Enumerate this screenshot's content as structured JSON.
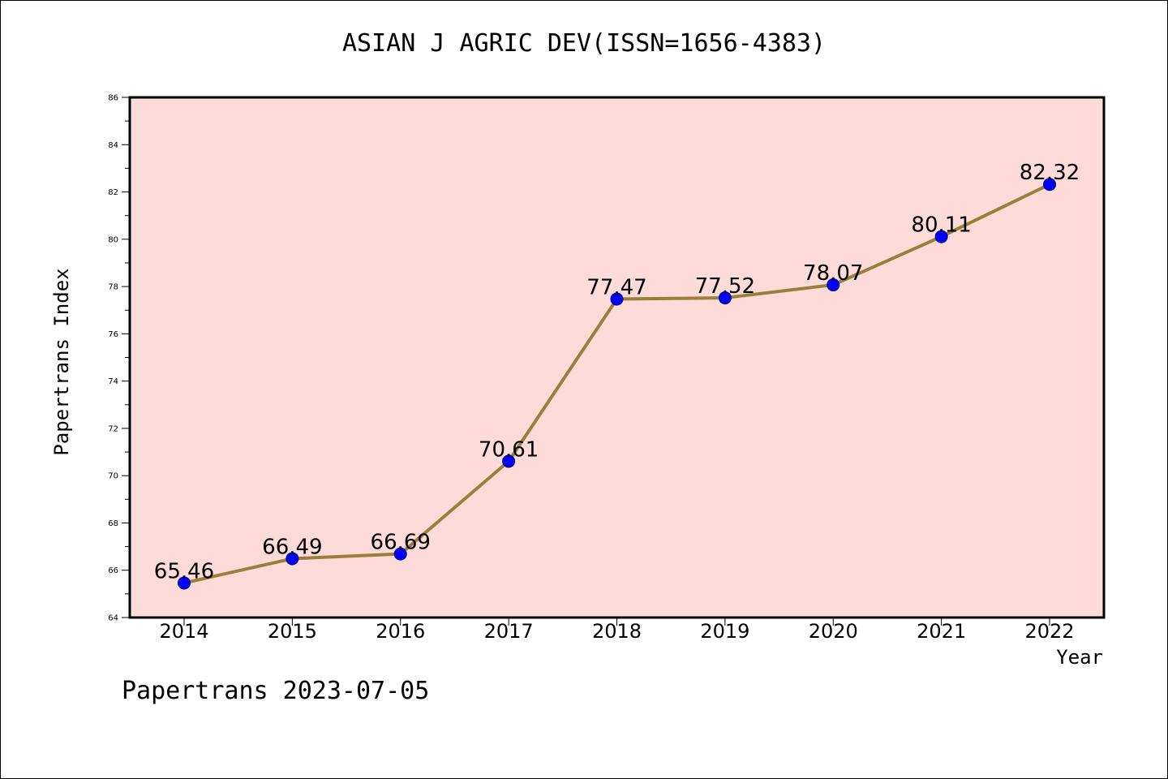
{
  "chart_data": {
    "type": "line",
    "title": "ASIAN J AGRIC DEV(ISSN=1656-4383)",
    "xlabel": "Year",
    "ylabel": "Papertrans Index",
    "categories": [
      "2014",
      "2015",
      "2016",
      "2017",
      "2018",
      "2019",
      "2020",
      "2021",
      "2022"
    ],
    "series": [
      {
        "values": [
          65.46,
          66.49,
          66.69,
          70.61,
          77.47,
          77.52,
          78.07,
          80.11,
          82.32
        ],
        "labels": [
          "65.46",
          "66.49",
          "66.69",
          "70.61",
          "77.47",
          "77.52",
          "78.07",
          "80.11",
          "82.32"
        ]
      }
    ],
    "ylim": [
      64,
      86
    ],
    "yticks": [
      64,
      66,
      68,
      70,
      72,
      74,
      76,
      78,
      80,
      82,
      84,
      86
    ],
    "grid": false,
    "colors": {
      "plot_background": "#fddbd8",
      "line": "#9a7f3a",
      "marker": "#0000ff",
      "axis": "#000000"
    }
  },
  "footer": "Papertrans 2023-07-05"
}
